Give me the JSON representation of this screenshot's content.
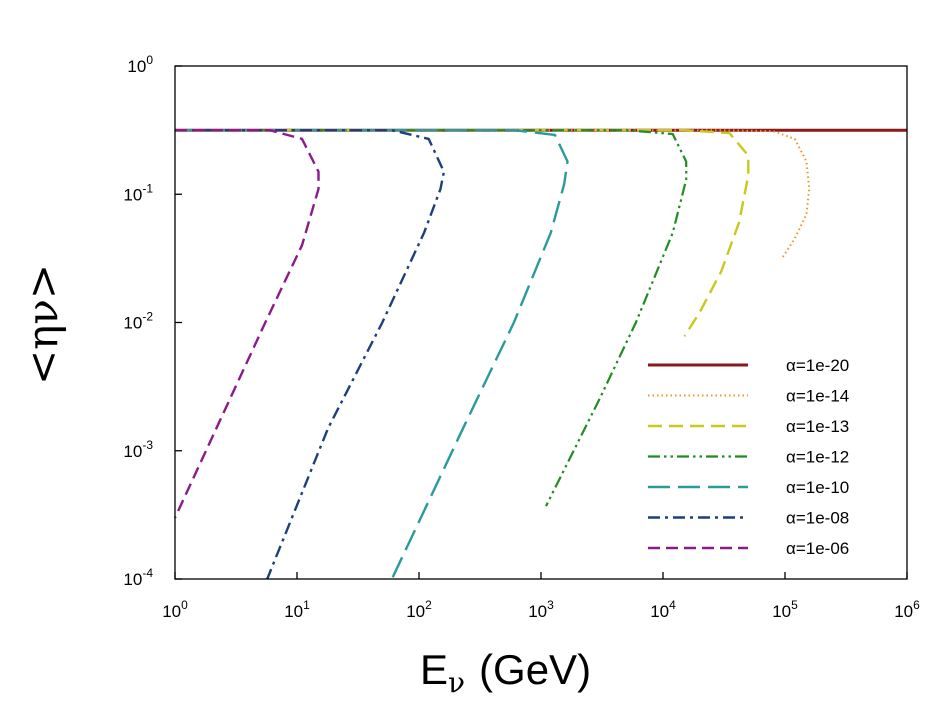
{
  "chart_data": {
    "type": "line",
    "xscale": "log",
    "yscale": "log",
    "xlim": [
      1,
      1000000
    ],
    "ylim": [
      0.0001,
      1
    ],
    "xlabel": {
      "main": "E",
      "sub": "ν",
      "unit": "(GeV)"
    },
    "ylabel": "<ην>",
    "x_ticks": [
      {
        "value": 1,
        "base": "10",
        "exp": "0"
      },
      {
        "value": 10,
        "base": "10",
        "exp": "1"
      },
      {
        "value": 100,
        "base": "10",
        "exp": "2"
      },
      {
        "value": 1000,
        "base": "10",
        "exp": "3"
      },
      {
        "value": 10000,
        "base": "10",
        "exp": "4"
      },
      {
        "value": 100000,
        "base": "10",
        "exp": "5"
      },
      {
        "value": 1000000,
        "base": "10",
        "exp": "6"
      }
    ],
    "y_ticks": [
      {
        "value": 1,
        "base": "10",
        "exp": "0"
      },
      {
        "value": 0.1,
        "base": "10",
        "exp": "-1"
      },
      {
        "value": 0.01,
        "base": "10",
        "exp": "-2"
      },
      {
        "value": 0.001,
        "base": "10",
        "exp": "-3"
      },
      {
        "value": 0.0001,
        "base": "10",
        "exp": "-4"
      }
    ],
    "legend_position": "lower-right",
    "series": [
      {
        "name": "α=1e-20",
        "color": "#8b1a1a",
        "style": "solid",
        "points": [
          [
            1,
            0.316
          ],
          [
            1000000,
            0.316
          ]
        ]
      },
      {
        "name": "α=1e-14",
        "color": "#f0922a",
        "style": "dotted",
        "points": [
          [
            1,
            0.316
          ],
          [
            30000,
            0.316
          ],
          [
            80000,
            0.31
          ],
          [
            120000,
            0.27
          ],
          [
            150000,
            0.18
          ],
          [
            158000,
            0.11
          ],
          [
            150000,
            0.07
          ],
          [
            120000,
            0.045
          ],
          [
            95000,
            0.032
          ]
        ]
      },
      {
        "name": "α=1e-13",
        "color": "#c8c81e",
        "style": "dashed",
        "points": [
          [
            1,
            0.316
          ],
          [
            15000,
            0.316
          ],
          [
            35000,
            0.3
          ],
          [
            50000,
            0.2
          ],
          [
            50000,
            0.14
          ],
          [
            42000,
            0.06
          ],
          [
            30000,
            0.025
          ],
          [
            20000,
            0.012
          ],
          [
            15000,
            0.0078
          ]
        ]
      },
      {
        "name": "α=1e-12",
        "color": "#228b22",
        "style": "dashdotdot",
        "points": [
          [
            1,
            0.316
          ],
          [
            5000,
            0.316
          ],
          [
            12000,
            0.295
          ],
          [
            15500,
            0.18
          ],
          [
            15500,
            0.13
          ],
          [
            12000,
            0.05
          ],
          [
            6000,
            0.01
          ],
          [
            3000,
            0.0025
          ],
          [
            1100,
            0.00037
          ]
        ]
      },
      {
        "name": "α=1e-10",
        "color": "#2a9a9a",
        "style": "longdash",
        "points": [
          [
            1,
            0.316
          ],
          [
            600,
            0.316
          ],
          [
            1300,
            0.29
          ],
          [
            1650,
            0.18
          ],
          [
            1550,
            0.12
          ],
          [
            1200,
            0.05
          ],
          [
            600,
            0.01
          ],
          [
            230,
            0.0015
          ],
          [
            60,
            0.0001
          ]
        ]
      },
      {
        "name": "α=1e-08",
        "color": "#1f3f7a",
        "style": "dashdot",
        "points": [
          [
            1,
            0.316
          ],
          [
            60,
            0.316
          ],
          [
            120,
            0.27
          ],
          [
            160,
            0.15
          ],
          [
            150,
            0.11
          ],
          [
            110,
            0.05
          ],
          [
            50,
            0.01
          ],
          [
            18,
            0.0015
          ],
          [
            5.7,
            0.0001
          ]
        ]
      },
      {
        "name": "α=1e-06",
        "color": "#8b1a8b",
        "style": "shortdash",
        "points": [
          [
            1,
            0.316
          ],
          [
            6,
            0.316
          ],
          [
            11,
            0.27
          ],
          [
            15,
            0.15
          ],
          [
            15,
            0.11
          ],
          [
            11,
            0.04
          ],
          [
            5.5,
            0.01
          ],
          [
            2.8,
            0.0025
          ],
          [
            1,
            0.0003
          ]
        ]
      }
    ]
  }
}
